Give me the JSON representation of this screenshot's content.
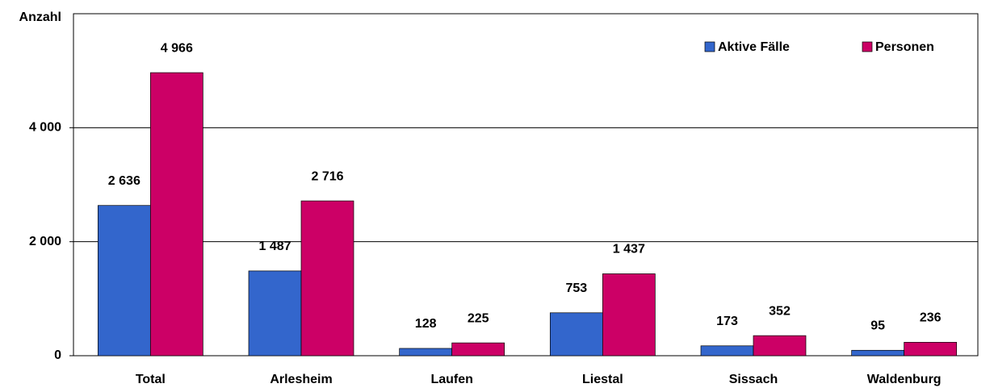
{
  "chart_data": {
    "type": "bar",
    "y_label": "Anzahl",
    "categories": [
      "Total",
      "Arlesheim",
      "Laufen",
      "Liestal",
      "Sissach",
      "Waldenburg"
    ],
    "series": [
      {
        "name": "Aktive Fälle",
        "color": "#3366cc",
        "values": [
          2636,
          1487,
          128,
          753,
          173,
          95
        ],
        "value_labels": [
          "2 636",
          "1 487",
          "128",
          "753",
          "173",
          "95"
        ]
      },
      {
        "name": "Personen",
        "color": "#cc0066",
        "values": [
          4966,
          2716,
          225,
          1437,
          352,
          236
        ],
        "value_labels": [
          "4 966",
          "2 716",
          "225",
          "1 437",
          "352",
          "236"
        ]
      }
    ],
    "ylim": [
      0,
      6000
    ],
    "yticks": [
      0,
      {
        "value": 2000,
        "label": "2 000"
      },
      {
        "value": 4000,
        "label": "4 000"
      }
    ],
    "grid": true,
    "legend": "top-right"
  }
}
